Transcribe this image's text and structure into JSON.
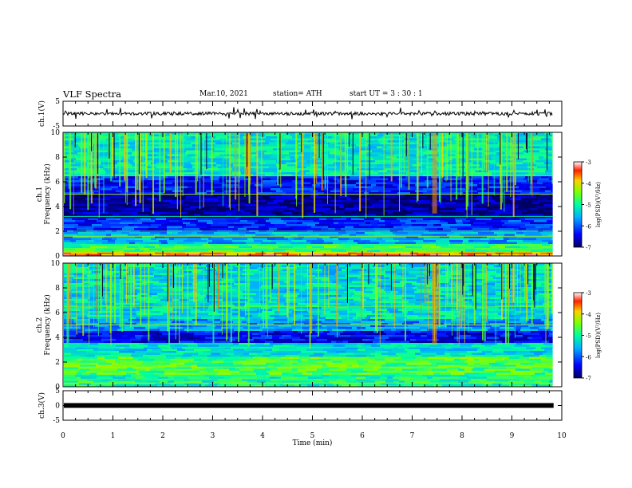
{
  "header": {
    "title": "VLF Spectra",
    "date": "Mar.10, 2021",
    "station": "station= ATH",
    "start": "start  UT =   3 : 30 : 1"
  },
  "chart_data": [
    {
      "type": "line",
      "name": "ch1-waveform",
      "ylabel": "ch.1(V)",
      "ylim": [
        -5,
        5
      ],
      "yticks": [
        "5",
        "-5"
      ],
      "xlim": [
        0,
        10
      ],
      "trace_level": 0,
      "trace_note": "noisy black waveform around 0 V"
    },
    {
      "type": "heatmap",
      "name": "ch1-spectrogram",
      "ylabel": "ch.1\nFrequency  (kHz)",
      "ylim": [
        0,
        10
      ],
      "yticks": [
        "0",
        "2",
        "4",
        "6",
        "8",
        "10"
      ],
      "xlim": [
        0,
        10
      ],
      "data_end_min": 9.82,
      "colorbar": {
        "label": "log(PSD)(V²/Hz)",
        "range": [
          -7,
          -3
        ],
        "ticks": [
          "-3",
          "-4",
          "-5",
          "-6",
          "-7"
        ]
      },
      "bands": [
        {
          "from": 0.0,
          "to": 0.4,
          "level": -3.6
        },
        {
          "from": 0.4,
          "to": 1.0,
          "level": -4.8
        },
        {
          "from": 1.0,
          "to": 2.0,
          "level": -5.6
        },
        {
          "from": 2.0,
          "to": 3.0,
          "level": -6.2
        },
        {
          "from": 3.0,
          "to": 5.0,
          "level": -6.8
        },
        {
          "from": 5.0,
          "to": 6.5,
          "level": -6.3
        },
        {
          "from": 6.5,
          "to": 10.0,
          "level": -5.2
        }
      ],
      "event_min": 7.45
    },
    {
      "type": "heatmap",
      "name": "ch2-spectrogram",
      "ylabel": "ch.2\nFrequency  (kHz)",
      "ylim": [
        0,
        10
      ],
      "yticks": [
        "0",
        "2",
        "4",
        "6",
        "8",
        "10"
      ],
      "xlim": [
        0,
        10
      ],
      "data_end_min": 9.82,
      "colorbar": {
        "label": "log(PSD)(V²/Hz)",
        "range": [
          -7,
          -3
        ],
        "ticks": [
          "-3",
          "-4",
          "-5",
          "-6",
          "-7"
        ]
      },
      "bands": [
        {
          "from": 0.0,
          "to": 1.0,
          "level": -5.0
        },
        {
          "from": 1.0,
          "to": 2.5,
          "level": -4.7
        },
        {
          "from": 2.5,
          "to": 3.5,
          "level": -5.3
        },
        {
          "from": 3.5,
          "to": 4.5,
          "level": -6.4
        },
        {
          "from": 4.5,
          "to": 5.5,
          "level": -5.7
        },
        {
          "from": 5.5,
          "to": 10.0,
          "level": -5.3
        }
      ],
      "event_min": 7.45
    },
    {
      "type": "line",
      "name": "ch3-waveform",
      "ylabel": "ch.3(V)",
      "ylim": [
        -5,
        5
      ],
      "yticks": [
        "5",
        "0",
        "-5"
      ],
      "xlim": [
        0,
        10
      ],
      "trace_level": 0,
      "trace_note": "thick flat black line at 0 V",
      "xlabel": "Time  (min)",
      "xticks": [
        "0",
        "1",
        "2",
        "3",
        "4",
        "5",
        "6",
        "7",
        "8",
        "9",
        "10"
      ]
    }
  ]
}
